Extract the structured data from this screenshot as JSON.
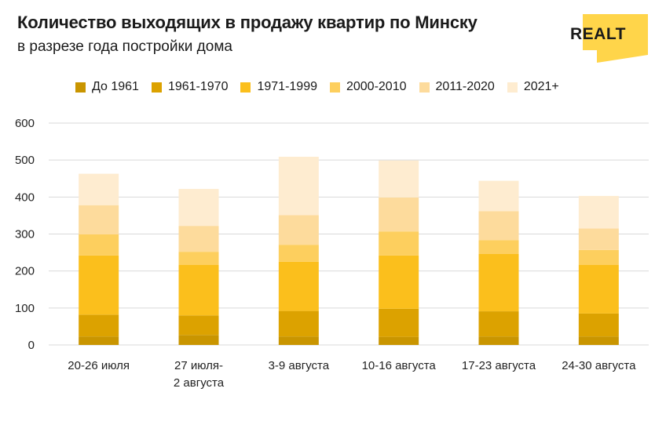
{
  "title": "Количество выходящих в продажу квартир по Минску",
  "subtitle": "в разрезе года постройки дома",
  "logo_text": "REALT",
  "colors": {
    "logo_bg": "#ffd54a",
    "grid": "#d9d9d9"
  },
  "chart_data": {
    "type": "bar",
    "stacked": true,
    "categories": [
      "20-26 июля",
      "27 июля-\n2 августа",
      "3-9 августа",
      "10-16 августа",
      "17-23 августа",
      "24-30 августа"
    ],
    "ylim": [
      0,
      600
    ],
    "yticks": [
      0,
      100,
      200,
      300,
      400,
      500,
      600
    ],
    "grid": true,
    "legend_position": "top",
    "series": [
      {
        "name": "До 1961",
        "color": "#c99500",
        "values": [
          23,
          27,
          23,
          22,
          23,
          23
        ]
      },
      {
        "name": "1961-1970",
        "color": "#dca200",
        "values": [
          59,
          53,
          69,
          76,
          68,
          62
        ]
      },
      {
        "name": "1971-1999",
        "color": "#fbbf1c",
        "values": [
          160,
          137,
          133,
          144,
          155,
          132
        ]
      },
      {
        "name": "2000-2010",
        "color": "#fdcf5e",
        "values": [
          57,
          35,
          46,
          65,
          37,
          40
        ]
      },
      {
        "name": "2011-2020",
        "color": "#fddb9c",
        "values": [
          79,
          70,
          80,
          92,
          79,
          58
        ]
      },
      {
        "name": "2021+",
        "color": "#feecd0",
        "values": [
          85,
          100,
          158,
          100,
          82,
          88
        ]
      }
    ]
  }
}
